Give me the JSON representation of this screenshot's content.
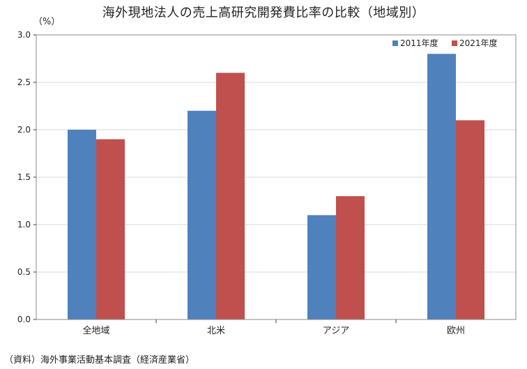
{
  "chart_data": {
    "type": "bar",
    "title": "海外現地法人の売上高研究開発費比率の比較（地域別）",
    "y_unit": "（%）",
    "categories": [
      "全地域",
      "北米",
      "アジア",
      "欧州"
    ],
    "series": [
      {
        "name": "2011年度",
        "color": "#4f81bd",
        "values": [
          2.0,
          2.2,
          1.1,
          2.8
        ]
      },
      {
        "name": "2021年度",
        "color": "#c0504d",
        "values": [
          1.9,
          2.6,
          1.3,
          2.1
        ]
      }
    ],
    "ylim": [
      0,
      3.0
    ],
    "yticks": [
      "0.0",
      "0.5",
      "1.0",
      "1.5",
      "2.0",
      "2.5",
      "3.0"
    ],
    "grid": true,
    "legend_position": "top-right"
  },
  "source": "（資料）海外事業活動基本調査（経済産業省）"
}
